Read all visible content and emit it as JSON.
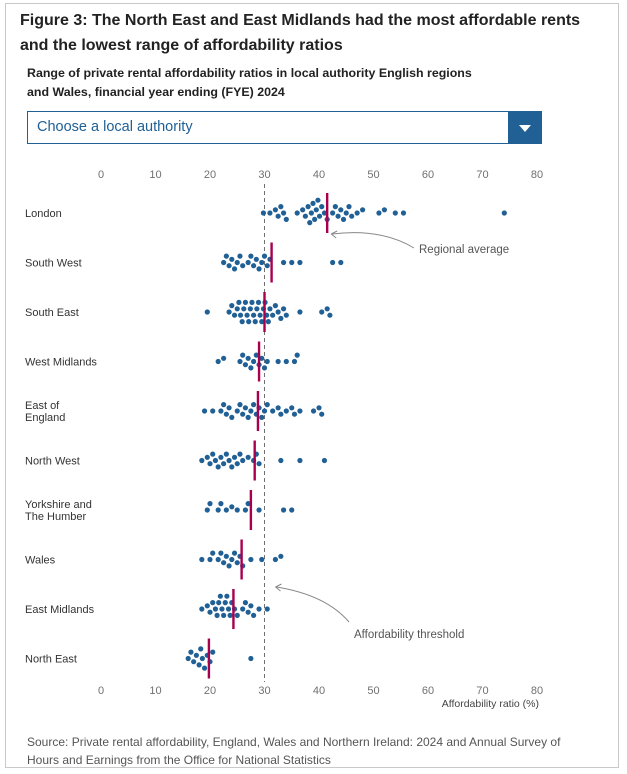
{
  "header": {
    "title": "Figure 3: The North East and East Midlands had the most affordable rents and the lowest range of affordability ratios",
    "subtitle": "Range of private rental affordability ratios in local authority English regions and Wales, financial year ending (FYE) 2024"
  },
  "dropdown": {
    "selected": "Choose a local authority",
    "icon": "chevron-down-icon"
  },
  "colors": {
    "dot": "#206095",
    "average": "#a8004f",
    "threshold": "#707070",
    "axis_text": "#707070",
    "label_text": "#333333"
  },
  "chart_data": {
    "type": "scatter",
    "subtype": "beeswarm",
    "xlabel": "Affordability ratio (%)",
    "xlim": [
      0,
      80
    ],
    "xticks": [
      0,
      10,
      20,
      30,
      40,
      50,
      60,
      70,
      80
    ],
    "grid": false,
    "axis_positions": [
      "top",
      "bottom"
    ],
    "threshold": {
      "value": 30,
      "label": "Affordability threshold"
    },
    "average_label": "Regional average",
    "regions": [
      {
        "name": "London",
        "average": 41.5,
        "values": [
          29.8,
          31.0,
          32.0,
          32.5,
          33.0,
          33.5,
          34.0,
          36.0,
          37.0,
          37.5,
          38.0,
          38.3,
          38.6,
          38.9,
          39.2,
          39.5,
          39.8,
          40.1,
          40.5,
          41.0,
          41.5,
          42.5,
          43.0,
          43.5,
          44.0,
          44.5,
          45.0,
          45.5,
          46.0,
          47.0,
          48.0,
          51.0,
          52.0,
          54.0,
          55.5,
          74.0
        ]
      },
      {
        "name": "South West",
        "average": 31.3,
        "values": [
          22.5,
          23.0,
          23.5,
          24.0,
          24.5,
          25.0,
          25.5,
          26.0,
          27.0,
          27.5,
          28.0,
          28.5,
          29.0,
          29.5,
          30.0,
          30.5,
          31.0,
          33.5,
          35.0,
          36.5,
          42.5,
          44.0
        ]
      },
      {
        "name": "South East",
        "average": 30.0,
        "values": [
          19.5,
          23.5,
          24.0,
          24.5,
          25.0,
          25.3,
          25.6,
          25.9,
          26.2,
          26.5,
          26.8,
          27.1,
          27.4,
          27.7,
          28.0,
          28.3,
          28.6,
          28.9,
          29.2,
          29.5,
          29.8,
          30.1,
          30.4,
          30.7,
          31.0,
          31.5,
          32.0,
          32.5,
          33.0,
          33.5,
          34.0,
          36.5,
          40.5,
          41.5,
          42.0
        ]
      },
      {
        "name": "West Midlands",
        "average": 29.0,
        "values": [
          21.5,
          22.5,
          25.5,
          26.0,
          26.5,
          27.0,
          27.5,
          28.0,
          28.5,
          29.0,
          29.5,
          30.0,
          30.5,
          32.5,
          34.0,
          35.5,
          36.0
        ]
      },
      {
        "name": "East of England",
        "average": 28.8,
        "values": [
          19.0,
          20.5,
          22.0,
          22.5,
          23.0,
          23.5,
          24.0,
          25.0,
          25.5,
          26.0,
          26.5,
          27.0,
          27.5,
          28.0,
          28.5,
          29.0,
          29.5,
          30.0,
          30.5,
          31.5,
          32.5,
          33.0,
          34.0,
          35.0,
          35.5,
          36.5,
          39.0,
          40.0,
          40.5
        ]
      },
      {
        "name": "North West",
        "average": 28.2,
        "values": [
          18.5,
          19.5,
          20.0,
          20.5,
          21.0,
          21.5,
          22.0,
          22.5,
          23.0,
          23.5,
          24.0,
          24.5,
          25.0,
          25.5,
          26.0,
          27.0,
          28.0,
          28.5,
          29.0,
          33.0,
          36.5,
          41.0
        ]
      },
      {
        "name": "Yorkshire and The Humber",
        "average": 27.5,
        "values": [
          19.5,
          20.0,
          21.5,
          22.0,
          23.0,
          24.0,
          25.0,
          26.5,
          27.0,
          29.0,
          33.5,
          35.0
        ]
      },
      {
        "name": "Wales",
        "average": 25.8,
        "values": [
          18.5,
          20.0,
          20.5,
          21.5,
          22.0,
          22.5,
          23.0,
          23.5,
          24.0,
          24.5,
          25.0,
          25.5,
          26.0,
          27.5,
          29.5,
          32.0,
          33.0
        ]
      },
      {
        "name": "East Midlands",
        "average": 24.3,
        "values": [
          18.5,
          19.5,
          20.0,
          20.5,
          21.0,
          21.3,
          21.6,
          21.9,
          22.2,
          22.5,
          22.8,
          23.1,
          23.4,
          23.7,
          24.0,
          24.5,
          25.0,
          26.0,
          26.5,
          27.0,
          27.5,
          28.0,
          29.0,
          30.5
        ]
      },
      {
        "name": "North East",
        "average": 19.8,
        "values": [
          16.0,
          16.5,
          17.0,
          17.5,
          18.0,
          18.3,
          18.6,
          19.0,
          19.5,
          20.0,
          20.5,
          27.5
        ]
      }
    ]
  },
  "source": "Source: Private rental affordability, England, Wales and Northern Ireland: 2024 and Annual Survey of Hours and Earnings from the Office for National Statistics"
}
